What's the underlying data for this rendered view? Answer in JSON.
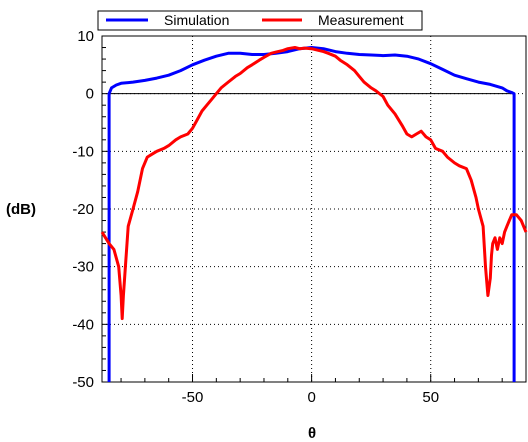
{
  "chart_data": {
    "type": "line",
    "title": "",
    "xlabel": "θ",
    "ylabel": "(dB)",
    "xlim": [
      -88,
      90
    ],
    "ylim": [
      -50,
      10
    ],
    "xticks": [
      -50,
      0,
      50
    ],
    "yticks": [
      10,
      0,
      -10,
      -20,
      -30,
      -40,
      -50
    ],
    "grid": true,
    "legend": "top",
    "reference_line": 0,
    "series": [
      {
        "name": "Simulation",
        "color": "#0000ff",
        "x": [
          -85,
          -85,
          -84,
          -82,
          -80,
          -75,
          -70,
          -65,
          -60,
          -55,
          -50,
          -45,
          -40,
          -35,
          -30,
          -25,
          -20,
          -15,
          -10,
          -5,
          0,
          5,
          10,
          15,
          20,
          25,
          30,
          35,
          40,
          45,
          50,
          55,
          60,
          65,
          70,
          75,
          80,
          82,
          84,
          85,
          85
        ],
        "values": [
          -50,
          0,
          1,
          1.5,
          1.8,
          2.0,
          2.3,
          2.7,
          3.2,
          4.0,
          5.0,
          5.8,
          6.5,
          7.0,
          7.0,
          6.8,
          6.8,
          7.0,
          7.3,
          7.8,
          8.0,
          7.8,
          7.3,
          7.0,
          6.8,
          6.7,
          6.6,
          6.7,
          6.5,
          6.0,
          5.2,
          4.2,
          3.2,
          2.6,
          2.0,
          1.6,
          1.0,
          0.5,
          0.2,
          0,
          -50
        ]
      },
      {
        "name": "Measurement",
        "color": "#ff0000",
        "x": [
          -88,
          -85,
          -83,
          -81,
          -80,
          -79.5,
          -79,
          -78,
          -77,
          -75,
          -73,
          -71,
          -69,
          -67,
          -65,
          -62,
          -60,
          -57,
          -55,
          -52,
          -50,
          -48,
          -46,
          -44,
          -42,
          -40,
          -38,
          -35,
          -32,
          -30,
          -27,
          -25,
          -22,
          -20,
          -17,
          -15,
          -12,
          -10,
          -7,
          -5,
          -3,
          0,
          3,
          5,
          7,
          10,
          12,
          15,
          18,
          20,
          22,
          25,
          27,
          30,
          32,
          35,
          38,
          40,
          42,
          44,
          46,
          48,
          50,
          52,
          55,
          57,
          60,
          62,
          65,
          67,
          69,
          70,
          72,
          73,
          74,
          75,
          75.5,
          76,
          77,
          78,
          79,
          80,
          81,
          82,
          83,
          84,
          86,
          88,
          90
        ],
        "values": [
          -24,
          -26,
          -27,
          -30,
          -35,
          -39,
          -35,
          -29,
          -23,
          -20,
          -17,
          -13,
          -11,
          -10.5,
          -10,
          -9.5,
          -9,
          -8,
          -7.5,
          -7,
          -6,
          -4.5,
          -3,
          -2,
          -1,
          0,
          1,
          2,
          3,
          3.5,
          4.5,
          5.0,
          5.8,
          6.3,
          7.0,
          7.2,
          7.5,
          7.8,
          8.0,
          7.8,
          7.9,
          7.8,
          7.5,
          7.3,
          7.0,
          6.5,
          5.8,
          5.0,
          4.0,
          3.0,
          2.0,
          1.0,
          0.5,
          -0.5,
          -2.0,
          -3.5,
          -5.5,
          -7.0,
          -7.5,
          -7.0,
          -6.5,
          -7.5,
          -8.0,
          -9.5,
          -10,
          -11,
          -12,
          -12.5,
          -13,
          -15,
          -18,
          -20,
          -23,
          -30,
          -35,
          -32,
          -28,
          -26,
          -25,
          -27,
          -25,
          -26,
          -24,
          -23,
          -22,
          -21,
          -21,
          -22,
          -24
        ]
      }
    ]
  }
}
